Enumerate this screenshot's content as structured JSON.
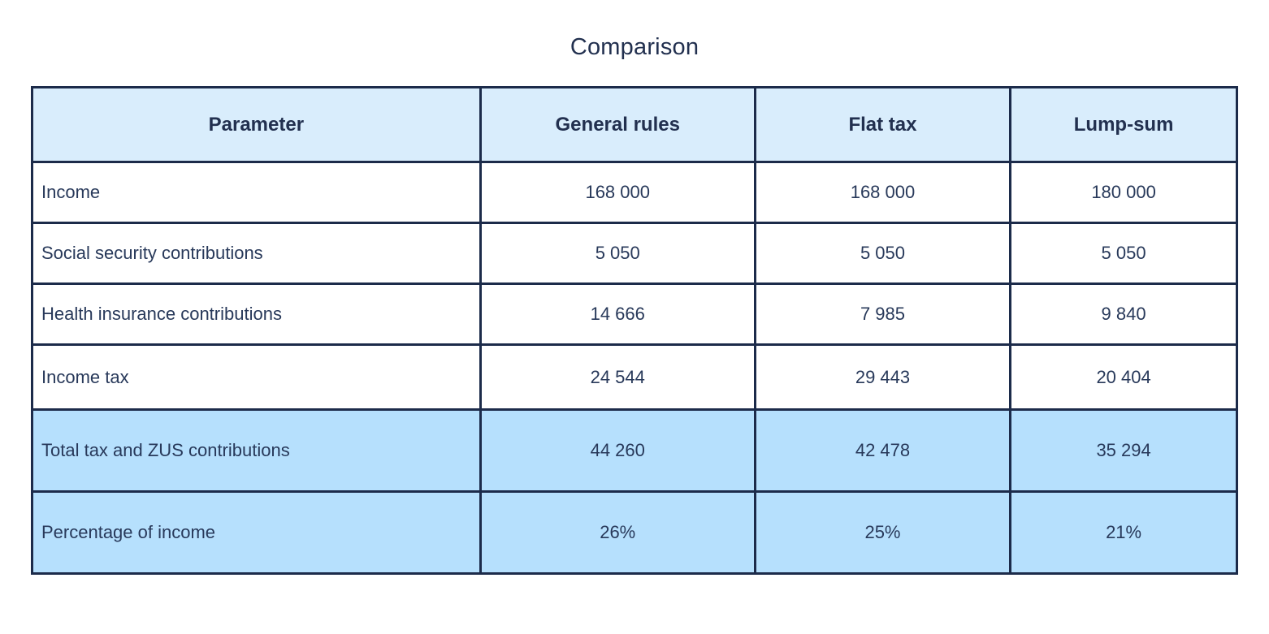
{
  "page": {
    "title": "Comparison"
  },
  "colors": {
    "page_bg": "#ffffff",
    "border_color": "#1c2b4a",
    "header_bg": "#d9edfc",
    "highlight_bg": "#b6e0fd",
    "text_color": "#28395a",
    "header_text_color": "#22304f"
  },
  "chart_data": {
    "type": "table",
    "title": "Comparison",
    "columns": [
      "Parameter",
      "General rules",
      "Flat tax",
      "Lump-sum"
    ],
    "rows": [
      [
        "Income",
        "168 000",
        "168 000",
        "180 000"
      ],
      [
        "Social security contributions",
        "5 050",
        "5 050",
        "5 050"
      ],
      [
        "Health insurance contributions",
        "14 666",
        "7 985",
        "9 840"
      ],
      [
        "Income tax",
        "24 544",
        "29 443",
        "20 404"
      ],
      [
        "Total tax and ZUS contributions",
        "44 260",
        "42 478",
        "35 294"
      ],
      [
        "Percentage of income",
        "26%",
        "25%",
        "21%"
      ]
    ],
    "highlighted_rows": [
      4,
      5
    ],
    "layout": {
      "header_style": "light-blue, bold, centered",
      "first_column_alignment": "left",
      "value_columns_alignment": "center"
    }
  }
}
